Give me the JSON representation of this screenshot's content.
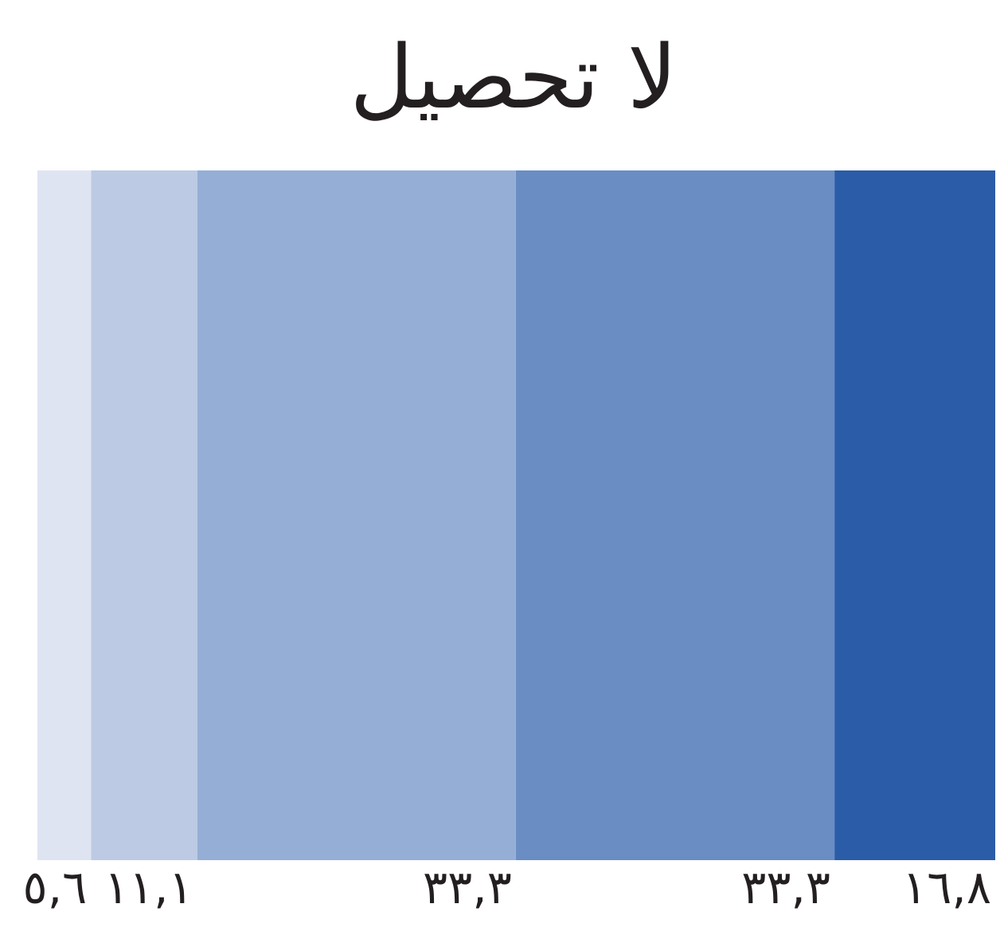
{
  "chart_data": {
    "type": "stacked-bar",
    "title": "لا تحصيل",
    "direction": "rtl",
    "series": [
      {
        "color": "#2b5ca8",
        "values": [
          16.8
        ],
        "value_labels": [
          "١٦,٨"
        ]
      },
      {
        "color": "#6a8dc3",
        "values": [
          33.3
        ],
        "value_labels": [
          "٣٣,٣"
        ]
      },
      {
        "color": "#95aed6",
        "values": [
          33.3
        ],
        "value_labels": [
          "٣٣,٣"
        ]
      },
      {
        "color": "#bccae4",
        "values": [
          11.1
        ],
        "value_labels": [
          "١١,١"
        ]
      },
      {
        "color": "#dfe4f2",
        "values": [
          5.6
        ],
        "value_labels": [
          "٥,٦"
        ]
      }
    ]
  }
}
